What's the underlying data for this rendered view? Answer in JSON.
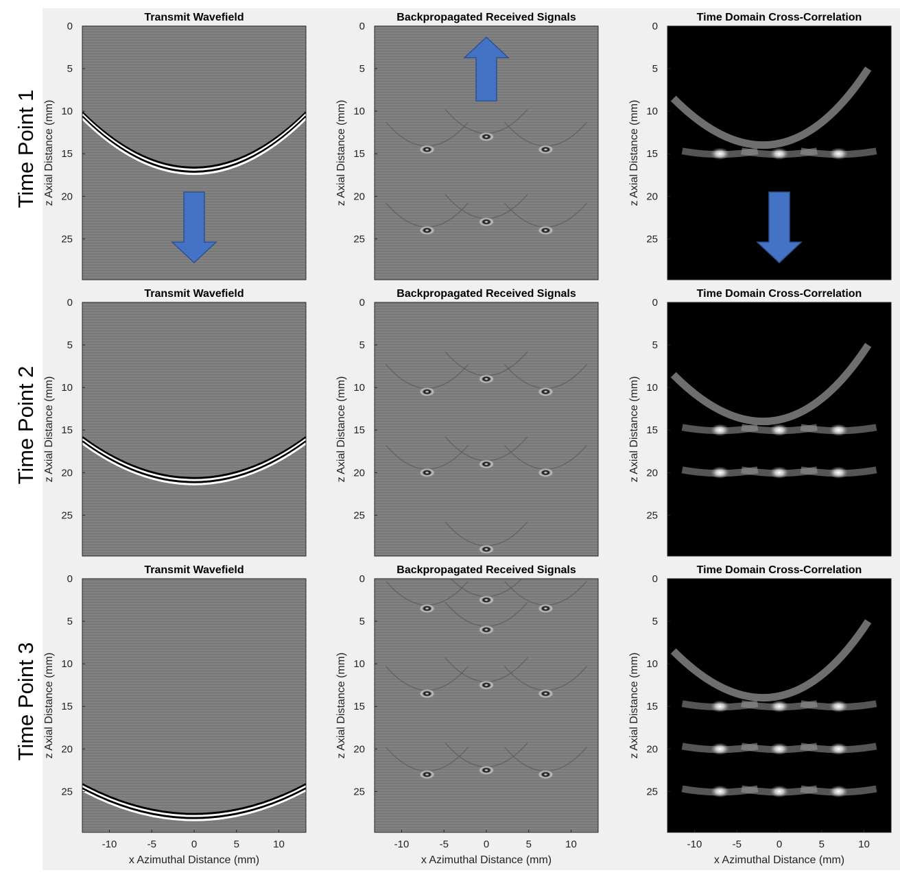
{
  "figure": {
    "background_color": "#f0f0f0",
    "row_labels": [
      "Time Point 1",
      "Time Point 2",
      "Time Point 3"
    ],
    "column_titles": [
      "Transmit Wavefield",
      "Backpropagated Received Signals",
      "Time Domain Cross-Correlation"
    ],
    "arrow_color": "#4472c4"
  },
  "chart_data": [
    {
      "type": "heatmap",
      "title": "Transmit Wavefield",
      "row": 1,
      "column": 1,
      "colormap": "gray",
      "background_value": "mid-gray",
      "xlabel": "",
      "ylabel": "z Axial Distance (mm)",
      "xlim": [
        -13.2,
        13.2
      ],
      "ylim": [
        0,
        29.8
      ],
      "y_reversed": true,
      "xticks": [],
      "yticks": [
        0,
        5,
        10,
        15,
        20,
        25
      ],
      "wavefronts": [
        {
          "apex_z": 17,
          "edge_z": 10.5
        }
      ],
      "arrows": [
        {
          "direction": "down",
          "x": 0,
          "z_from": 19.5,
          "z_to": 27.8
        }
      ]
    },
    {
      "type": "heatmap",
      "title": "Backpropagated Received Signals",
      "row": 1,
      "column": 2,
      "colormap": "gray",
      "background_value": "mid-gray",
      "xlabel": "",
      "ylabel": "z Axial Distance (mm)",
      "xlim": [
        -13.2,
        13.2
      ],
      "ylim": [
        0,
        29.8
      ],
      "y_reversed": true,
      "xticks": [],
      "yticks": [
        0,
        5,
        10,
        15,
        20,
        25
      ],
      "bright_spots": [
        {
          "x": -7,
          "z": 14.5
        },
        {
          "x": 0,
          "z": 13
        },
        {
          "x": 7,
          "z": 14.5
        },
        {
          "x": -7,
          "z": 24
        },
        {
          "x": 0,
          "z": 23
        },
        {
          "x": 7,
          "z": 24
        }
      ],
      "arrows": [
        {
          "direction": "up",
          "x": 0,
          "z_from": 8.8,
          "z_to": 1.3
        }
      ]
    },
    {
      "type": "heatmap",
      "title": "Time Domain Cross-Correlation",
      "row": 1,
      "column": 3,
      "colormap": "gray",
      "background_value": "black",
      "xlabel": "",
      "ylabel": "z Axial Distance (mm)",
      "xlim": [
        -13.2,
        13.2
      ],
      "ylim": [
        0,
        29.8
      ],
      "y_reversed": true,
      "xticks": [],
      "yticks": [
        0,
        5,
        10,
        15,
        20,
        25
      ],
      "bright_spots": [
        {
          "x": -7,
          "z": 15
        },
        {
          "x": 0,
          "z": 15
        },
        {
          "x": 7,
          "z": 15
        }
      ],
      "arrows": [
        {
          "direction": "down",
          "x": 0,
          "z_from": 19.5,
          "z_to": 27.8
        }
      ]
    },
    {
      "type": "heatmap",
      "title": "Transmit Wavefield",
      "row": 2,
      "column": 1,
      "colormap": "gray",
      "background_value": "mid-gray",
      "xlabel": "",
      "ylabel": "z Axial Distance (mm)",
      "xlim": [
        -13.2,
        13.2
      ],
      "ylim": [
        0,
        29.8
      ],
      "y_reversed": true,
      "xticks": [],
      "yticks": [
        0,
        5,
        10,
        15,
        20,
        25
      ],
      "wavefronts": [
        {
          "apex_z": 21,
          "edge_z": 16.2
        }
      ]
    },
    {
      "type": "heatmap",
      "title": "Backpropagated Received Signals",
      "row": 2,
      "column": 2,
      "colormap": "gray",
      "background_value": "mid-gray",
      "xlabel": "",
      "ylabel": "z Axial Distance (mm)",
      "xlim": [
        -13.2,
        13.2
      ],
      "ylim": [
        0,
        29.8
      ],
      "y_reversed": true,
      "xticks": [],
      "yticks": [
        0,
        5,
        10,
        15,
        20,
        25
      ],
      "bright_spots": [
        {
          "x": -7,
          "z": 10.5
        },
        {
          "x": 0,
          "z": 9
        },
        {
          "x": 7,
          "z": 10.5
        },
        {
          "x": -7,
          "z": 20
        },
        {
          "x": 0,
          "z": 19
        },
        {
          "x": 7,
          "z": 20
        },
        {
          "x": 0,
          "z": 29
        }
      ]
    },
    {
      "type": "heatmap",
      "title": "Time Domain Cross-Correlation",
      "row": 2,
      "column": 3,
      "colormap": "gray",
      "background_value": "black",
      "xlabel": "",
      "ylabel": "z Axial Distance (mm)",
      "xlim": [
        -13.2,
        13.2
      ],
      "ylim": [
        0,
        29.8
      ],
      "y_reversed": true,
      "xticks": [],
      "yticks": [
        0,
        5,
        10,
        15,
        20,
        25
      ],
      "bright_spots": [
        {
          "x": -7,
          "z": 15
        },
        {
          "x": 0,
          "z": 15
        },
        {
          "x": 7,
          "z": 15
        },
        {
          "x": -7,
          "z": 20
        },
        {
          "x": 0,
          "z": 20
        },
        {
          "x": 7,
          "z": 20
        }
      ]
    },
    {
      "type": "heatmap",
      "title": "Transmit Wavefield",
      "row": 3,
      "column": 1,
      "colormap": "gray",
      "background_value": "mid-gray",
      "xlabel": "x Azimuthal Distance (mm)",
      "ylabel": "z Axial Distance (mm)",
      "xlim": [
        -13.2,
        13.2
      ],
      "ylim": [
        0,
        29.8
      ],
      "y_reversed": true,
      "xticks": [
        -10,
        -5,
        0,
        5,
        10
      ],
      "yticks": [
        0,
        5,
        10,
        15,
        20,
        25
      ],
      "wavefronts": [
        {
          "apex_z": 28,
          "edge_z": 24.5
        }
      ]
    },
    {
      "type": "heatmap",
      "title": "Backpropagated Received Signals",
      "row": 3,
      "column": 2,
      "colormap": "gray",
      "background_value": "mid-gray",
      "xlabel": "x Azimuthal Distance (mm)",
      "ylabel": "z Axial Distance (mm)",
      "xlim": [
        -13.2,
        13.2
      ],
      "ylim": [
        0,
        29.8
      ],
      "y_reversed": true,
      "xticks": [
        -10,
        -5,
        0,
        5,
        10
      ],
      "yticks": [
        0,
        5,
        10,
        15,
        20,
        25
      ],
      "bright_spots": [
        {
          "x": -7,
          "z": 3.5
        },
        {
          "x": 0,
          "z": 2.5
        },
        {
          "x": 7,
          "z": 3.5
        },
        {
          "x": 0,
          "z": 6
        },
        {
          "x": -7,
          "z": 13.5
        },
        {
          "x": 0,
          "z": 12.5
        },
        {
          "x": 7,
          "z": 13.5
        },
        {
          "x": -7,
          "z": 23
        },
        {
          "x": 0,
          "z": 22.5
        },
        {
          "x": 7,
          "z": 23
        }
      ]
    },
    {
      "type": "heatmap",
      "title": "Time Domain Cross-Correlation",
      "row": 3,
      "column": 3,
      "colormap": "gray",
      "background_value": "black",
      "xlabel": "x Azimuthal Distance (mm)",
      "ylabel": "z Axial Distance (mm)",
      "xlim": [
        -13.2,
        13.2
      ],
      "ylim": [
        0,
        29.8
      ],
      "y_reversed": true,
      "xticks": [
        -10,
        -5,
        0,
        5,
        10
      ],
      "yticks": [
        0,
        5,
        10,
        15,
        20,
        25
      ],
      "bright_spots": [
        {
          "x": -7,
          "z": 15
        },
        {
          "x": 0,
          "z": 15
        },
        {
          "x": 7,
          "z": 15
        },
        {
          "x": -7,
          "z": 20
        },
        {
          "x": 0,
          "z": 20
        },
        {
          "x": 7,
          "z": 20
        },
        {
          "x": -7,
          "z": 25
        },
        {
          "x": 0,
          "z": 25
        },
        {
          "x": 7,
          "z": 25
        }
      ]
    }
  ]
}
